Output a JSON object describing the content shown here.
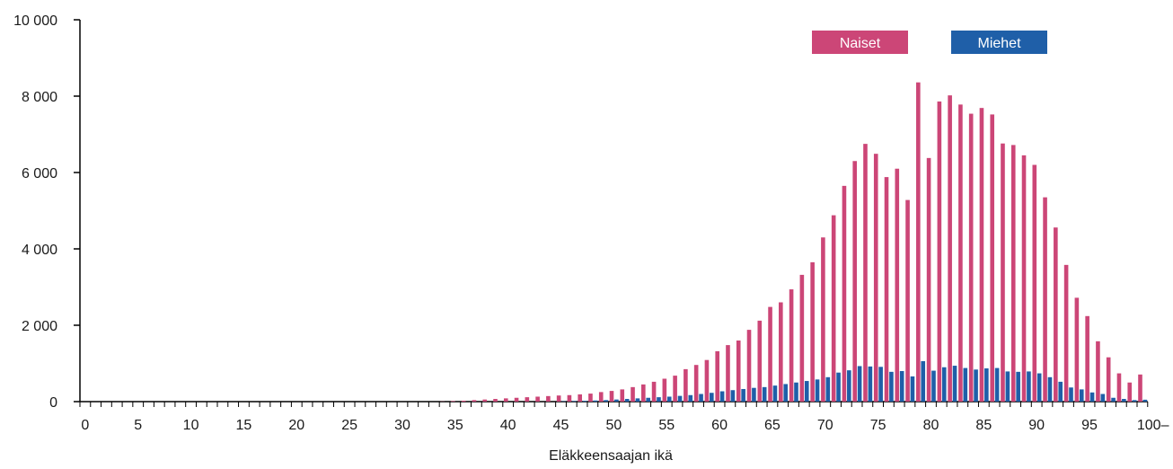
{
  "chart_data": {
    "type": "bar",
    "title": "",
    "xlabel": "Eläkkeensaajan ikä",
    "ylabel": "",
    "ylim": [
      0,
      10000
    ],
    "y_ticks": [
      0,
      2000,
      4000,
      6000,
      8000,
      10000
    ],
    "y_tick_labels": [
      "0",
      "2 000",
      "4 000",
      "6 000",
      "8 000",
      "10 000"
    ],
    "x_tick_labels": [
      "0",
      "5",
      "10",
      "15",
      "20",
      "25",
      "30",
      "35",
      "40",
      "45",
      "50",
      "55",
      "60",
      "65",
      "70",
      "75",
      "80",
      "85",
      "90",
      "95",
      "100–"
    ],
    "categories": [
      0,
      1,
      2,
      3,
      4,
      5,
      6,
      7,
      8,
      9,
      10,
      11,
      12,
      13,
      14,
      15,
      16,
      17,
      18,
      19,
      20,
      21,
      22,
      23,
      24,
      25,
      26,
      27,
      28,
      29,
      30,
      31,
      32,
      33,
      34,
      35,
      36,
      37,
      38,
      39,
      40,
      41,
      42,
      43,
      44,
      45,
      46,
      47,
      48,
      49,
      50,
      51,
      52,
      53,
      54,
      55,
      56,
      57,
      58,
      59,
      60,
      61,
      62,
      63,
      64,
      65,
      66,
      67,
      68,
      69,
      70,
      71,
      72,
      73,
      74,
      75,
      76,
      77,
      78,
      79,
      80,
      81,
      82,
      83,
      84,
      85,
      86,
      87,
      88,
      89,
      90,
      91,
      92,
      93,
      94,
      95,
      96,
      97,
      98,
      99,
      100
    ],
    "series": [
      {
        "name": "Naiset",
        "color": "#cc4677",
        "values": [
          0,
          0,
          0,
          0,
          0,
          0,
          0,
          0,
          0,
          0,
          0,
          0,
          0,
          0,
          0,
          0,
          0,
          0,
          0,
          0,
          0,
          0,
          0,
          0,
          0,
          0,
          0,
          0,
          0,
          0,
          0,
          0,
          0,
          0,
          5,
          15,
          25,
          40,
          55,
          70,
          85,
          100,
          115,
          130,
          145,
          160,
          170,
          190,
          210,
          250,
          280,
          320,
          380,
          450,
          520,
          600,
          680,
          850,
          960,
          1090,
          1320,
          1480,
          1600,
          1880,
          2120,
          2480,
          2600,
          2940,
          3320,
          3650,
          4300,
          4880,
          5650,
          6300,
          6750,
          6490,
          5880,
          6100,
          5280,
          8360,
          6380,
          7860,
          8020,
          7780,
          7540,
          7690,
          7520,
          6760,
          6720,
          6450,
          6200,
          5350,
          4560,
          3580,
          2720,
          2240,
          1580,
          1160,
          740,
          500,
          710
        ]
      },
      {
        "name": "Miehet",
        "color": "#1f5fa8",
        "values": [
          0,
          0,
          0,
          0,
          0,
          0,
          0,
          0,
          0,
          0,
          0,
          0,
          0,
          0,
          0,
          0,
          0,
          0,
          0,
          0,
          0,
          0,
          0,
          0,
          0,
          0,
          0,
          0,
          0,
          0,
          0,
          0,
          0,
          0,
          0,
          0,
          0,
          0,
          0,
          0,
          0,
          0,
          0,
          0,
          0,
          10,
          15,
          20,
          30,
          40,
          55,
          70,
          85,
          100,
          115,
          130,
          150,
          170,
          200,
          230,
          270,
          300,
          330,
          360,
          380,
          420,
          460,
          500,
          540,
          580,
          640,
          760,
          820,
          930,
          920,
          910,
          780,
          800,
          660,
          1060,
          810,
          900,
          940,
          880,
          840,
          870,
          880,
          790,
          780,
          790,
          740,
          640,
          520,
          370,
          320,
          240,
          200,
          100,
          70,
          40,
          50
        ]
      }
    ],
    "legend": {
      "placement": "top-right",
      "items": [
        "Naiset",
        "Miehet"
      ]
    },
    "grid": false
  }
}
